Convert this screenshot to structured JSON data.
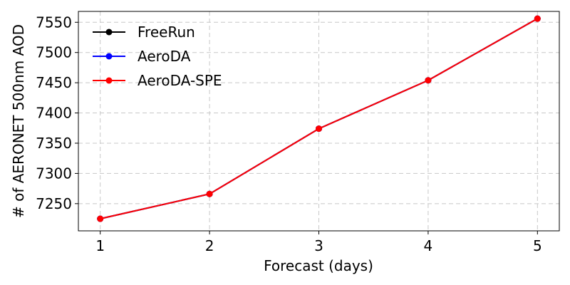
{
  "chart_data": {
    "type": "line",
    "title": "",
    "xlabel": "Forecast (days)",
    "ylabel": "# of AERONET 500nm AOD",
    "x": [
      1,
      2,
      3,
      4,
      5
    ],
    "xlim": [
      0.8,
      5.2
    ],
    "ylim": [
      7205,
      7568
    ],
    "xticks": [
      1,
      2,
      3,
      4,
      5
    ],
    "yticks": [
      7250,
      7300,
      7350,
      7400,
      7450,
      7500,
      7550
    ],
    "grid": true,
    "legend_position": "top-left",
    "series": [
      {
        "name": "FreeRun",
        "color": "#000000",
        "marker": "circle",
        "values": [
          7225,
          7266,
          7374,
          7454,
          7556
        ]
      },
      {
        "name": "AeroDA",
        "color": "#0000ff",
        "marker": "circle",
        "values": [
          7225,
          7266,
          7374,
          7454,
          7556
        ]
      },
      {
        "name": "AeroDA-SPE",
        "color": "#ff0000",
        "marker": "circle",
        "values": [
          7225,
          7266,
          7374,
          7454,
          7556
        ]
      }
    ]
  }
}
